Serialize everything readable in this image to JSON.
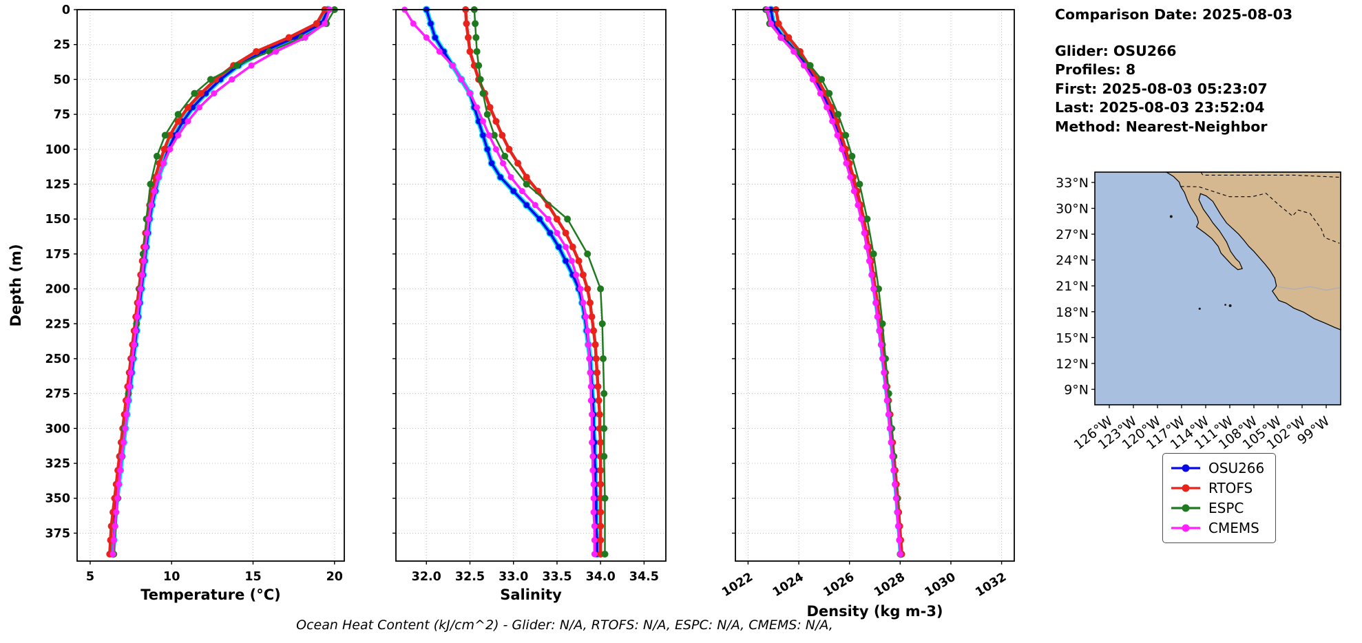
{
  "info_panel": {
    "comparison_date": "Comparison Date: 2025-08-03",
    "glider": "Glider: OSU266",
    "profiles": "Profiles: 8",
    "first": "First: 2025-08-03 05:23:07",
    "last": "Last: 2025-08-03 23:52:04",
    "method": "Method: Nearest-Neighbor"
  },
  "footer": "Ocean Heat Content (kJ/cm^2) - Glider: N/A,  RTOFS: N/A,  ESPC: N/A,  CMEMS: N/A,",
  "colors": {
    "grid": "#bbbbbb",
    "frame": "#000000"
  },
  "legend": [
    {
      "label": "OSU266",
      "color": "#0909e8"
    },
    {
      "label": "RTOFS",
      "color": "#e8231c"
    },
    {
      "label": "ESPC",
      "color": "#1f7a1f"
    },
    {
      "label": "CMEMS",
      "color": "#ff1fff"
    }
  ],
  "map": {
    "ocean_color": "#a9bfdf",
    "land_color": "#d5b88f",
    "lat_range": [
      7.2,
      34.2
    ],
    "lon_range": [
      -127.8,
      -97.2
    ],
    "lat_tick_values": [
      33,
      30,
      27,
      24,
      21,
      18,
      15,
      12,
      9
    ],
    "lat_tick_labels": [
      "33°N",
      "30°N",
      "27°N",
      "24°N",
      "21°N",
      "18°N",
      "15°N",
      "12°N",
      "9°N"
    ],
    "lon_tick_values": [
      -126,
      -123,
      -120,
      -117,
      -114,
      -111,
      -108,
      -105,
      -102,
      -99
    ],
    "lon_tick_labels": [
      "126°W",
      "123°W",
      "120°W",
      "117°W",
      "114°W",
      "111°W",
      "108°W",
      "105°W",
      "102°W",
      "99°W"
    ]
  },
  "chart_data": [
    {
      "id": "temperature",
      "type": "line",
      "xlabel": "Temperature (°C)",
      "ylabel": "Depth (m)",
      "xlim": [
        4.2,
        20.6
      ],
      "ylim": [
        0,
        395
      ],
      "xticks": [
        5,
        10,
        15,
        20
      ],
      "xtick_labels": [
        "5",
        "10",
        "15",
        "20"
      ],
      "yticks": [
        0,
        25,
        50,
        75,
        100,
        125,
        150,
        175,
        200,
        225,
        250,
        275,
        300,
        325,
        350,
        375
      ],
      "ytick_labels": [
        "0",
        "25",
        "50",
        "75",
        "100",
        "125",
        "150",
        "175",
        "200",
        "225",
        "250",
        "275",
        "300",
        "325",
        "350",
        "375"
      ],
      "depths": [
        0,
        10,
        20,
        30,
        40,
        50,
        60,
        70,
        80,
        90,
        100,
        110,
        120,
        130,
        140,
        150,
        160,
        170,
        180,
        190,
        200,
        210,
        220,
        230,
        240,
        250,
        260,
        270,
        280,
        290,
        300,
        310,
        320,
        330,
        340,
        350,
        360,
        370,
        380,
        390
      ],
      "series": [
        {
          "name": "glider-profiles",
          "color": "#00dff0",
          "mimic": "OSU266"
        },
        {
          "name": "OSU266",
          "color": "#0909e8",
          "values": [
            19.6,
            19.2,
            17.6,
            15.6,
            14.1,
            13.0,
            12.1,
            11.3,
            10.7,
            10.2,
            9.8,
            9.5,
            9.2,
            9.0,
            8.8,
            8.65,
            8.55,
            8.45,
            8.35,
            8.25,
            8.15,
            8.05,
            7.95,
            7.85,
            7.75,
            7.65,
            7.55,
            7.45,
            7.35,
            7.25,
            7.15,
            7.05,
            6.95,
            6.85,
            6.75,
            6.65,
            6.55,
            6.5,
            6.45,
            6.4
          ]
        },
        {
          "name": "RTOFS",
          "color": "#e8231c",
          "values": [
            19.4,
            18.9,
            17.2,
            15.2,
            13.8,
            12.7,
            11.8,
            11.0,
            10.4,
            9.9,
            9.55,
            9.25,
            9.0,
            8.8,
            8.65,
            8.5,
            8.4,
            8.3,
            8.2,
            8.1,
            8.0,
            7.9,
            7.8,
            7.7,
            7.6,
            7.5,
            7.4,
            7.3,
            7.2,
            7.1,
            7.0,
            6.9,
            6.8,
            6.7,
            6.6,
            6.5,
            6.4,
            6.3,
            6.25,
            6.2
          ]
        },
        {
          "name": "ESPC",
          "color": "#1f7a1f",
          "depths": [
            0,
            10,
            20,
            30,
            40,
            50,
            60,
            75,
            90,
            105,
            125,
            150,
            175,
            200,
            225,
            250,
            275,
            300,
            320,
            350,
            390
          ],
          "values": [
            20.0,
            19.5,
            18.0,
            16.0,
            14.0,
            12.4,
            11.4,
            10.4,
            9.6,
            9.1,
            8.7,
            8.45,
            8.25,
            8.05,
            7.85,
            7.6,
            7.35,
            7.1,
            6.95,
            6.7,
            6.45
          ]
        },
        {
          "name": "CMEMS",
          "color": "#ff1fff",
          "values": [
            19.7,
            19.4,
            18.2,
            16.4,
            14.9,
            13.7,
            12.6,
            11.7,
            11.0,
            10.4,
            9.9,
            9.5,
            9.2,
            8.95,
            8.75,
            8.6,
            8.5,
            8.4,
            8.3,
            8.2,
            8.1,
            8.0,
            7.9,
            7.8,
            7.7,
            7.6,
            7.5,
            7.42,
            7.33,
            7.24,
            7.15,
            7.05,
            6.95,
            6.85,
            6.76,
            6.68,
            6.6,
            6.52,
            6.45,
            6.4
          ]
        }
      ]
    },
    {
      "id": "salinity",
      "type": "line",
      "xlabel": "Salinity",
      "ylabel": "Depth (m)",
      "xlim": [
        31.65,
        34.75
      ],
      "ylim": [
        0,
        395
      ],
      "xticks": [
        32.0,
        32.5,
        33.0,
        33.5,
        34.0,
        34.5
      ],
      "xtick_labels": [
        "32.0",
        "32.5",
        "33.0",
        "33.5",
        "34.0",
        "34.5"
      ],
      "yticks": [
        0,
        25,
        50,
        75,
        100,
        125,
        150,
        175,
        200,
        225,
        250,
        275,
        300,
        325,
        350,
        375
      ],
      "ytick_labels": [
        "0",
        "25",
        "50",
        "75",
        "100",
        "125",
        "150",
        "175",
        "200",
        "225",
        "250",
        "275",
        "300",
        "325",
        "350",
        "375"
      ],
      "depths": [
        0,
        10,
        20,
        30,
        40,
        50,
        60,
        70,
        80,
        90,
        100,
        110,
        120,
        130,
        140,
        150,
        160,
        170,
        180,
        190,
        200,
        210,
        220,
        230,
        240,
        250,
        260,
        270,
        280,
        290,
        300,
        310,
        320,
        330,
        340,
        350,
        360,
        370,
        380,
        390
      ],
      "series": [
        {
          "name": "glider-profiles",
          "color": "#00dff0",
          "mimic": "OSU266"
        },
        {
          "name": "OSU266",
          "color": "#0909e8",
          "values": [
            32.0,
            32.05,
            32.1,
            32.2,
            32.3,
            32.4,
            32.5,
            32.55,
            32.6,
            32.65,
            32.7,
            32.75,
            32.85,
            33.0,
            33.15,
            33.3,
            33.42,
            33.52,
            33.6,
            33.68,
            33.75,
            33.79,
            33.82,
            33.84,
            33.86,
            33.88,
            33.89,
            33.9,
            33.91,
            33.92,
            33.92,
            33.93,
            33.93,
            33.94,
            33.94,
            33.95,
            33.95,
            33.95,
            33.96,
            33.96
          ]
        },
        {
          "name": "RTOFS",
          "color": "#e8231c",
          "values": [
            32.45,
            32.46,
            32.48,
            32.5,
            32.55,
            32.6,
            32.67,
            32.73,
            32.8,
            32.87,
            32.95,
            33.05,
            33.15,
            33.28,
            33.4,
            33.5,
            33.6,
            33.68,
            33.75,
            33.8,
            33.85,
            33.88,
            33.9,
            33.92,
            33.94,
            33.95,
            33.96,
            33.97,
            33.98,
            33.99,
            33.99,
            34.0,
            34.0,
            34.0,
            34.0,
            34.0,
            34.0,
            34.0,
            34.0,
            34.0
          ]
        },
        {
          "name": "ESPC",
          "color": "#1f7a1f",
          "depths": [
            0,
            10,
            20,
            30,
            40,
            50,
            60,
            75,
            90,
            105,
            125,
            150,
            175,
            200,
            225,
            250,
            275,
            300,
            320,
            350,
            390
          ],
          "values": [
            32.55,
            32.56,
            32.57,
            32.58,
            32.6,
            32.62,
            32.65,
            32.7,
            32.78,
            32.9,
            33.15,
            33.62,
            33.85,
            34.0,
            34.02,
            34.03,
            34.04,
            34.04,
            34.04,
            34.05,
            34.05
          ]
        },
        {
          "name": "CMEMS",
          "color": "#ff1fff",
          "values": [
            31.75,
            31.85,
            32.0,
            32.15,
            32.3,
            32.4,
            32.5,
            32.58,
            32.65,
            32.72,
            32.8,
            32.88,
            32.97,
            33.1,
            33.25,
            33.4,
            33.5,
            33.6,
            33.67,
            33.72,
            33.77,
            33.8,
            33.83,
            33.85,
            33.86,
            33.87,
            33.88,
            33.89,
            33.89,
            33.9,
            33.9,
            33.9,
            33.91,
            33.91,
            33.92,
            33.92,
            33.92,
            33.93,
            33.93,
            33.93
          ]
        }
      ]
    },
    {
      "id": "density",
      "type": "line",
      "xlabel": "Density (kg m-3)",
      "ylabel": "Depth (m)",
      "xlim": [
        1021.5,
        1032.5
      ],
      "ylim": [
        0,
        395
      ],
      "xticks": [
        1022,
        1024,
        1026,
        1028,
        1030,
        1032
      ],
      "xtick_labels": [
        "1022",
        "1024",
        "1026",
        "1028",
        "1030",
        "1032"
      ],
      "yticks": [
        0,
        25,
        50,
        75,
        100,
        125,
        150,
        175,
        200,
        225,
        250,
        275,
        300,
        325,
        350,
        375
      ],
      "ytick_labels": [
        "0",
        "25",
        "50",
        "75",
        "100",
        "125",
        "150",
        "175",
        "200",
        "225",
        "250",
        "275",
        "300",
        "325",
        "350",
        "375"
      ],
      "depths": [
        0,
        10,
        20,
        30,
        40,
        50,
        60,
        70,
        80,
        90,
        100,
        110,
        120,
        130,
        140,
        150,
        160,
        170,
        180,
        190,
        200,
        210,
        220,
        230,
        240,
        250,
        260,
        270,
        280,
        290,
        300,
        310,
        320,
        330,
        340,
        350,
        360,
        370,
        380,
        390
      ],
      "series": [
        {
          "name": "glider-profiles",
          "color": "#00dff0",
          "mimic": "OSU266"
        },
        {
          "name": "OSU266",
          "color": "#0909e8",
          "values": [
            1022.9,
            1023.0,
            1023.4,
            1023.9,
            1024.3,
            1024.65,
            1024.95,
            1025.2,
            1025.4,
            1025.6,
            1025.78,
            1025.94,
            1026.1,
            1026.25,
            1026.4,
            1026.52,
            1026.63,
            1026.73,
            1026.82,
            1026.9,
            1026.98,
            1027.06,
            1027.13,
            1027.2,
            1027.27,
            1027.33,
            1027.39,
            1027.45,
            1027.51,
            1027.57,
            1027.62,
            1027.67,
            1027.72,
            1027.77,
            1027.82,
            1027.87,
            1027.91,
            1027.95,
            1027.99,
            1028.03
          ]
        },
        {
          "name": "RTOFS",
          "color": "#e8231c",
          "values": [
            1023.1,
            1023.2,
            1023.6,
            1024.05,
            1024.4,
            1024.75,
            1025.05,
            1025.3,
            1025.5,
            1025.68,
            1025.85,
            1026.0,
            1026.15,
            1026.3,
            1026.44,
            1026.56,
            1026.67,
            1026.77,
            1026.86,
            1026.94,
            1027.02,
            1027.1,
            1027.17,
            1027.24,
            1027.3,
            1027.36,
            1027.42,
            1027.48,
            1027.54,
            1027.6,
            1027.65,
            1027.7,
            1027.75,
            1027.8,
            1027.85,
            1027.9,
            1027.94,
            1027.98,
            1028.02,
            1028.06
          ]
        },
        {
          "name": "ESPC",
          "color": "#1f7a1f",
          "depths": [
            0,
            10,
            20,
            30,
            40,
            50,
            60,
            75,
            90,
            105,
            125,
            150,
            175,
            200,
            225,
            250,
            275,
            300,
            320,
            350,
            390
          ],
          "values": [
            1022.7,
            1022.85,
            1023.3,
            1023.9,
            1024.45,
            1024.9,
            1025.2,
            1025.55,
            1025.85,
            1026.1,
            1026.4,
            1026.7,
            1026.95,
            1027.15,
            1027.3,
            1027.42,
            1027.55,
            1027.67,
            1027.75,
            1027.88,
            1028.0
          ]
        },
        {
          "name": "CMEMS",
          "color": "#ff1fff",
          "values": [
            1022.75,
            1022.9,
            1023.3,
            1023.8,
            1024.2,
            1024.55,
            1024.85,
            1025.1,
            1025.32,
            1025.52,
            1025.7,
            1025.87,
            1026.03,
            1026.18,
            1026.33,
            1026.46,
            1026.58,
            1026.68,
            1026.78,
            1026.87,
            1026.95,
            1027.03,
            1027.1,
            1027.17,
            1027.24,
            1027.3,
            1027.36,
            1027.42,
            1027.48,
            1027.54,
            1027.59,
            1027.64,
            1027.69,
            1027.74,
            1027.79,
            1027.84,
            1027.88,
            1027.92,
            1027.96,
            1028.0
          ]
        }
      ]
    }
  ]
}
